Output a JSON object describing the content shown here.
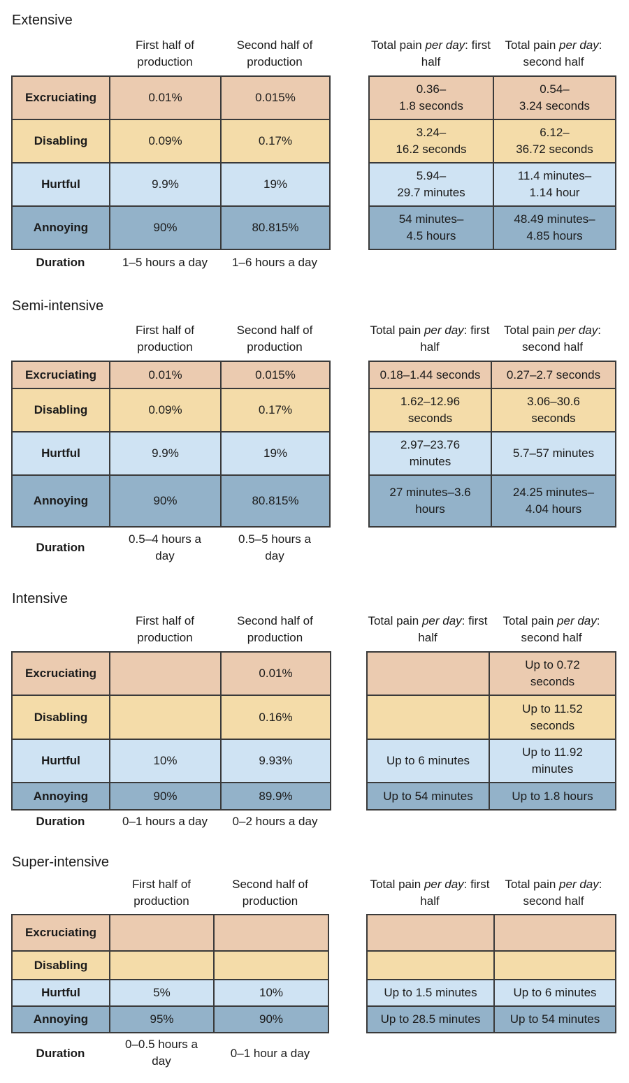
{
  "header_first_half": "First half of production",
  "header_second_half": "Second half of production",
  "pain_header_prefix": "Total pain ",
  "pain_header_emph": "per day",
  "pain_header_first_suffix": ": first half",
  "pain_header_second_suffix": ": second half",
  "row_labels": [
    "Excruciating",
    "Disabling",
    "Hurtful",
    "Annoying"
  ],
  "duration_label": "Duration",
  "row_colors": {
    "excruciating": "#ebcbb0",
    "disabling": "#f4dca9",
    "hurtful": "#cfe3f3",
    "annoying": "#93b2c9"
  },
  "sections": [
    {
      "title": "Extensive",
      "first": [
        "0.01%",
        "0.09%",
        "9.9%",
        "90%"
      ],
      "second": [
        "0.015%",
        "0.17%",
        "19%",
        "80.815%"
      ],
      "duration": [
        "1–5 hours a day",
        "1–6 hours a day"
      ],
      "pain_first": [
        "0.36–\n1.8 seconds",
        "3.24–\n16.2 seconds",
        "5.94–\n29.7 minutes",
        "54 minutes–\n4.5 hours"
      ],
      "pain_second": [
        "0.54–\n3.24 seconds",
        "6.12–\n36.72 seconds",
        "11.4 minutes–\n1.14 hour",
        "48.49 minutes–\n4.85 hours"
      ]
    },
    {
      "title": "Semi-intensive",
      "first": [
        "0.01%",
        "0.09%",
        "9.9%",
        "90%"
      ],
      "second": [
        "0.015%",
        "0.17%",
        "19%",
        "80.815%"
      ],
      "duration": [
        "0.5–4 hours a\nday",
        "0.5–5 hours a\nday"
      ],
      "pain_first": [
        "0.18–1.44 seconds",
        "1.62–12.96\nseconds",
        "2.97–23.76\nminutes",
        "27 minutes–3.6\nhours"
      ],
      "pain_second": [
        "0.27–2.7 seconds",
        "3.06–30.6\nseconds",
        "5.7–57 minutes",
        "24.25 minutes–\n4.04 hours"
      ]
    },
    {
      "title": "Intensive",
      "first": [
        "",
        "",
        "10%",
        "90%"
      ],
      "second": [
        "0.01%",
        "0.16%",
        "9.93%",
        "89.9%"
      ],
      "duration": [
        "0–1 hours a day",
        "0–2 hours a day"
      ],
      "pain_first": [
        "",
        "",
        "Up to 6 minutes",
        "Up to 54 minutes"
      ],
      "pain_second": [
        "Up to 0.72\nseconds",
        "Up to 11.52\nseconds",
        "Up to 11.92\nminutes",
        "Up to 1.8 hours"
      ]
    },
    {
      "title": "Super-intensive",
      "first": [
        "",
        "",
        "5%",
        "95%"
      ],
      "second": [
        "",
        "",
        "10%",
        "90%"
      ],
      "duration": [
        "0–0.5 hours a\nday",
        "0–1 hour a day"
      ],
      "pain_first": [
        "",
        "",
        "Up to 1.5 minutes",
        "Up to 28.5 minutes"
      ],
      "pain_second": [
        "",
        "",
        "Up to 6 minutes",
        "Up to 54 minutes"
      ]
    }
  ]
}
